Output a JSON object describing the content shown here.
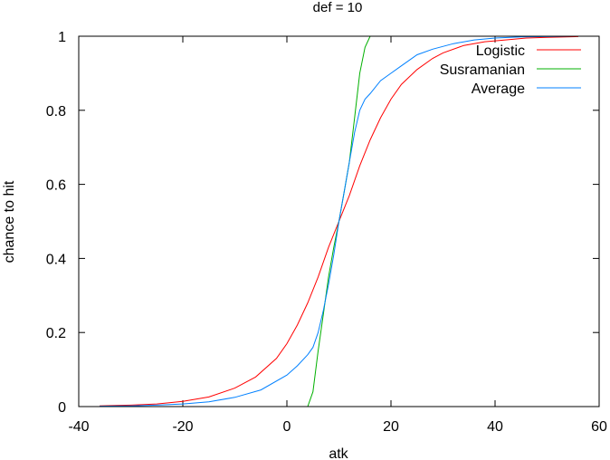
{
  "chart_data": {
    "type": "line",
    "title": "def = 10",
    "xlabel": "atk",
    "ylabel": "chance to hit",
    "xlim": [
      -40,
      60
    ],
    "ylim": [
      0,
      1
    ],
    "x_ticks": [
      -40,
      -20,
      0,
      20,
      40,
      60
    ],
    "x_tick_labels": [
      "-40",
      "-20",
      "0",
      "20",
      "40",
      "60"
    ],
    "y_ticks": [
      0,
      0.2,
      0.4,
      0.6,
      0.8,
      1
    ],
    "y_tick_labels": [
      "0",
      "0.2",
      "0.4",
      "0.6",
      "0.8",
      "1"
    ],
    "grid": false,
    "legend_position": "top-right",
    "series": [
      {
        "name": "Logistic",
        "color": "#ff0000",
        "x": [
          -36,
          -30,
          -25,
          -20,
          -15,
          -10,
          -6,
          -2,
          0,
          2,
          4,
          6,
          8,
          10,
          12,
          14,
          16,
          18,
          20,
          22,
          25,
          28,
          30,
          34,
          38,
          42,
          46,
          50,
          56
        ],
        "y": [
          0.002,
          0.004,
          0.007,
          0.014,
          0.026,
          0.05,
          0.08,
          0.13,
          0.17,
          0.22,
          0.28,
          0.35,
          0.43,
          0.5,
          0.57,
          0.65,
          0.72,
          0.78,
          0.83,
          0.87,
          0.91,
          0.94,
          0.955,
          0.975,
          0.985,
          0.99,
          0.995,
          0.997,
          0.999
        ]
      },
      {
        "name": "Susramanian",
        "color": "#00b000",
        "x": [
          -36,
          4,
          5,
          6,
          7,
          8,
          9,
          10,
          11,
          12,
          13,
          14,
          15,
          16
        ],
        "y": [
          0,
          0,
          0.04,
          0.15,
          0.25,
          0.35,
          0.43,
          0.5,
          0.58,
          0.66,
          0.78,
          0.9,
          0.97,
          1.0
        ]
      },
      {
        "name": "Average",
        "color": "#0080ff",
        "x": [
          -36,
          -30,
          -25,
          -20,
          -15,
          -10,
          -5,
          0,
          2,
          4,
          5,
          6,
          7,
          8,
          9,
          10,
          11,
          12,
          13,
          14,
          15,
          16,
          18,
          20,
          22,
          25,
          28,
          32,
          36,
          40,
          45,
          50,
          56
        ],
        "y": [
          0.001,
          0.002,
          0.004,
          0.007,
          0.013,
          0.025,
          0.045,
          0.085,
          0.11,
          0.14,
          0.16,
          0.2,
          0.26,
          0.33,
          0.41,
          0.5,
          0.58,
          0.66,
          0.74,
          0.8,
          0.83,
          0.845,
          0.88,
          0.9,
          0.92,
          0.95,
          0.965,
          0.98,
          0.99,
          0.995,
          0.998,
          0.999,
          1.0
        ]
      }
    ]
  }
}
